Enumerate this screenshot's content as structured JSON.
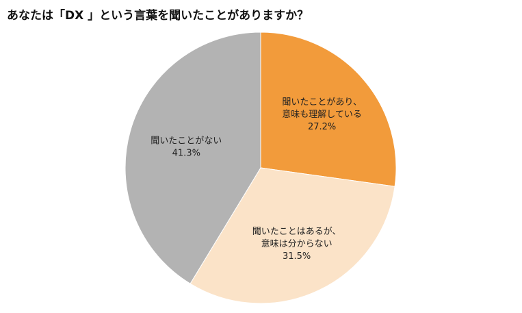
{
  "chart_data": {
    "type": "pie",
    "title": "あなたは「DX 」という言葉を聞いたことがありますか？",
    "start": "top",
    "direction": "clockwise",
    "slices": [
      {
        "label_lines": [
          "聞いたことがあり、",
          "意味も理解している"
        ],
        "value": 27.2,
        "value_label": "27.2%",
        "color": "#F29B3B"
      },
      {
        "label_lines": [
          "聞いたことはあるが、",
          "意味は分からない"
        ],
        "value": 31.5,
        "value_label": "31.5%",
        "color": "#FBE3C8"
      },
      {
        "label_lines": [
          "聞いたことがない"
        ],
        "value": 41.3,
        "value_label": "41.3%",
        "color": "#B3B3B3"
      }
    ]
  }
}
